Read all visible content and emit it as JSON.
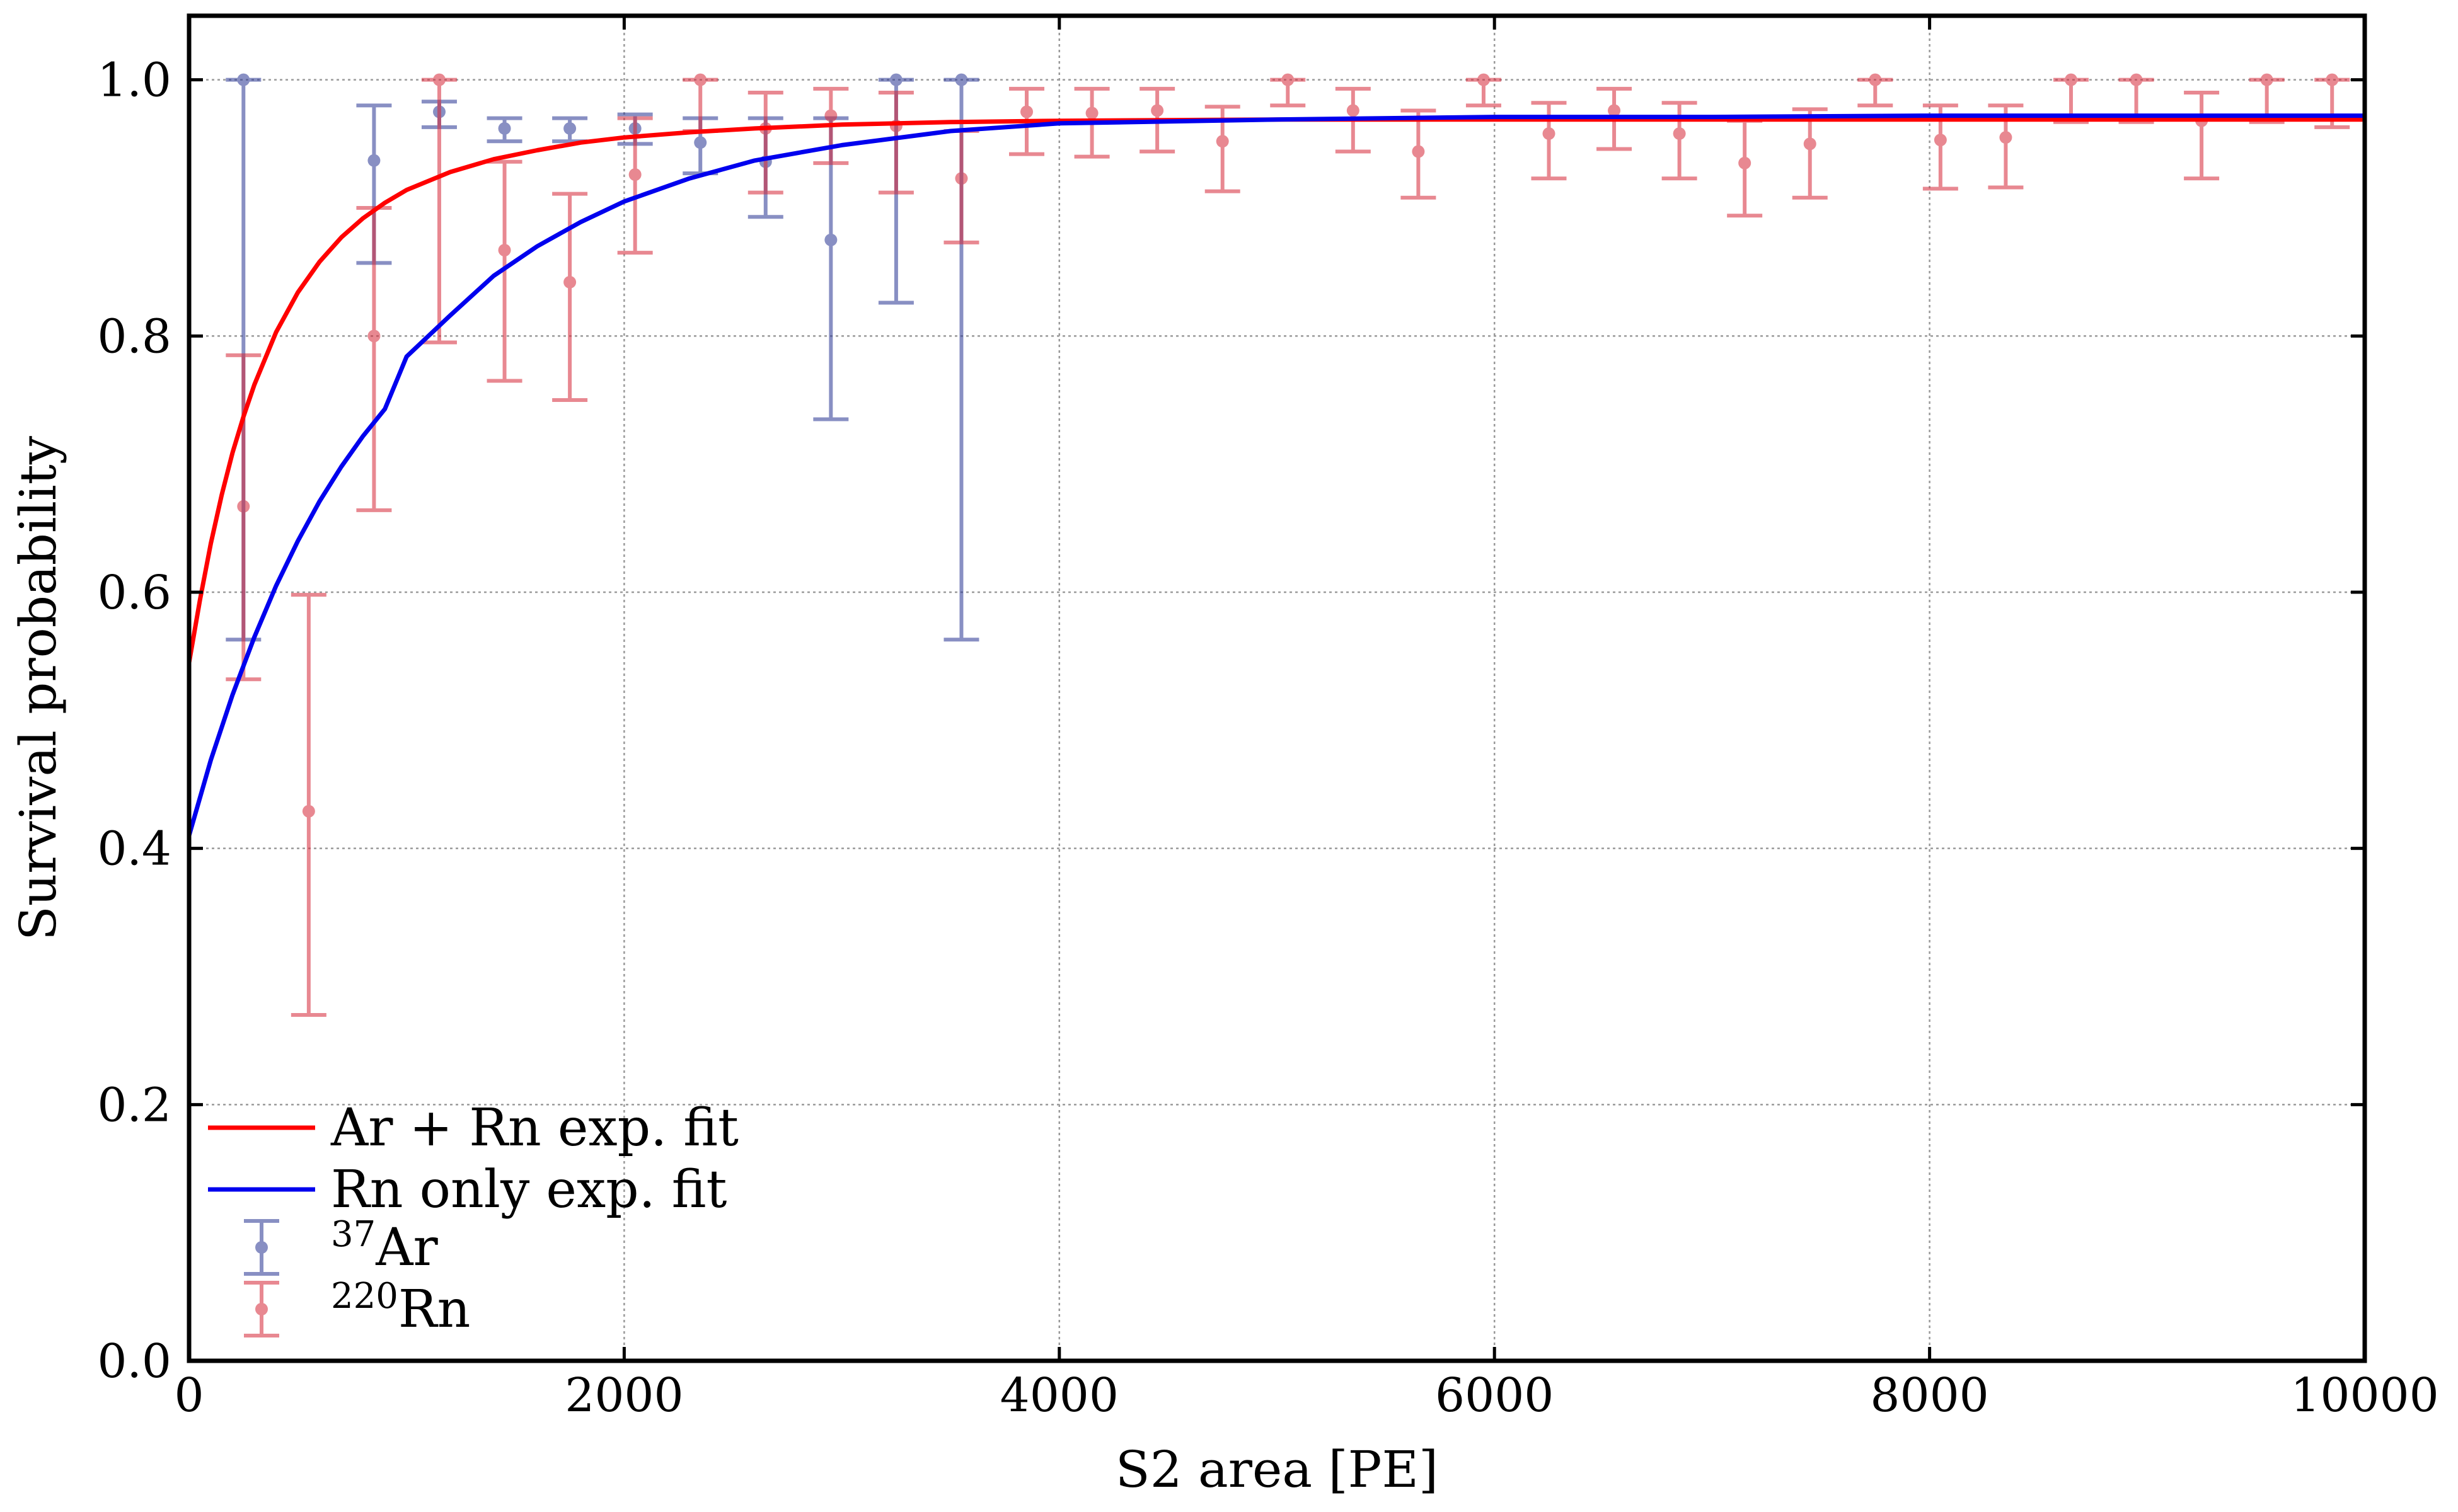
{
  "chart_data": {
    "type": "scatter",
    "xlabel": "S2 area [PE]",
    "ylabel": "Survival probability",
    "xlim": [
      0,
      10000
    ],
    "ylim": [
      0,
      1.05
    ],
    "xticks": [
      "0",
      "2000",
      "4000",
      "6000",
      "8000",
      "10000"
    ],
    "yticks": [
      "0.0",
      "0.2",
      "0.4",
      "0.6",
      "0.8",
      "1.0"
    ],
    "xtick_values": [
      0,
      2000,
      4000,
      6000,
      8000,
      10000
    ],
    "ytick_values": [
      0.0,
      0.2,
      0.4,
      0.6,
      0.8,
      1.0
    ],
    "grid": true,
    "legend_position": "lower-left",
    "series": [
      {
        "name": "Ar + Rn exp. fit",
        "kind": "line",
        "color": "#ff0000",
        "x": [
          0,
          50,
          100,
          150,
          200,
          250,
          300,
          400,
          500,
          600,
          700,
          800,
          900,
          1000,
          1200,
          1400,
          1600,
          1800,
          2000,
          2300,
          2600,
          3000,
          3500,
          4000,
          5000,
          6000,
          7000,
          8000,
          9000,
          10000
        ],
        "y": [
          0.545,
          0.594,
          0.638,
          0.676,
          0.709,
          0.737,
          0.762,
          0.803,
          0.834,
          0.858,
          0.877,
          0.892,
          0.904,
          0.914,
          0.928,
          0.938,
          0.945,
          0.951,
          0.955,
          0.959,
          0.962,
          0.965,
          0.967,
          0.968,
          0.969,
          0.969,
          0.969,
          0.969,
          0.969,
          0.969
        ]
      },
      {
        "name": "Rn only exp. fit",
        "kind": "line",
        "color": "#0000ee",
        "x": [
          0,
          100,
          200,
          300,
          400,
          500,
          600,
          700,
          800,
          900,
          1000,
          1200,
          1400,
          1600,
          1800,
          2000,
          2300,
          2600,
          3000,
          3500,
          4000,
          5000,
          6000,
          7000,
          8000,
          9000,
          10000
        ],
        "y": [
          0.41,
          0.469,
          0.52,
          0.565,
          0.605,
          0.64,
          0.671,
          0.698,
          0.722,
          0.743,
          0.784,
          0.816,
          0.847,
          0.87,
          0.889,
          0.905,
          0.923,
          0.937,
          0.949,
          0.96,
          0.966,
          0.969,
          0.971,
          0.971,
          0.972,
          0.972,
          0.972
        ]
      },
      {
        "name": "37Ar",
        "label_sup": "37",
        "label_main": "Ar",
        "kind": "errorbar",
        "color": "#283593",
        "x": [
          250,
          850,
          1150,
          1450,
          1750,
          2050,
          2350,
          2650,
          2950,
          3250,
          3550
        ],
        "y": [
          1.0,
          0.937,
          0.975,
          0.962,
          0.962,
          0.962,
          0.951,
          0.936,
          0.875,
          1.0,
          1.0
        ],
        "yerr_low": [
          0.563,
          0.857,
          0.963,
          0.952,
          0.952,
          0.95,
          0.927,
          0.893,
          0.735,
          0.826,
          0.563
        ],
        "yerr_high": [
          1.0,
          0.98,
          0.983,
          0.97,
          0.97,
          0.973,
          0.97,
          0.97,
          0.97,
          1.0,
          1.0
        ]
      },
      {
        "name": "220Rn",
        "label_sup": "220",
        "label_main": "Rn",
        "kind": "errorbar",
        "color": "#d62838",
        "x": [
          250,
          550,
          850,
          1150,
          1450,
          1750,
          2050,
          2350,
          2650,
          2950,
          3250,
          3550,
          3850,
          4150,
          4450,
          4750,
          5050,
          5350,
          5650,
          5950,
          6250,
          6550,
          6850,
          7150,
          7450,
          7750,
          8050,
          8350,
          8650,
          8950,
          9250,
          9550,
          9850
        ],
        "y": [
          0.667,
          0.429,
          0.8,
          1.0,
          0.867,
          0.842,
          0.926,
          1.0,
          0.962,
          0.972,
          0.964,
          0.923,
          0.975,
          0.974,
          0.976,
          0.952,
          1.0,
          0.976,
          0.944,
          1.0,
          0.958,
          0.976,
          0.958,
          0.935,
          0.95,
          1.0,
          0.953,
          0.955,
          1.0,
          1.0,
          0.968,
          1.0,
          1.0
        ],
        "yerr_low": [
          0.532,
          0.27,
          0.664,
          0.795,
          0.765,
          0.75,
          0.865,
          0.96,
          0.912,
          0.935,
          0.912,
          0.873,
          0.942,
          0.94,
          0.944,
          0.913,
          0.98,
          0.944,
          0.908,
          0.98,
          0.923,
          0.946,
          0.923,
          0.894,
          0.908,
          0.98,
          0.915,
          0.916,
          0.967,
          0.967,
          0.923,
          0.967,
          0.963
        ],
        "yerr_high": [
          0.785,
          0.598,
          0.9,
          1.0,
          0.936,
          0.911,
          0.97,
          1.0,
          0.99,
          0.993,
          0.99,
          0.96,
          0.993,
          0.993,
          0.993,
          0.979,
          1.0,
          0.993,
          0.976,
          1.0,
          0.982,
          0.993,
          0.982,
          0.968,
          0.977,
          1.0,
          0.98,
          0.98,
          1.0,
          1.0,
          0.99,
          1.0,
          1.0
        ]
      }
    ]
  }
}
